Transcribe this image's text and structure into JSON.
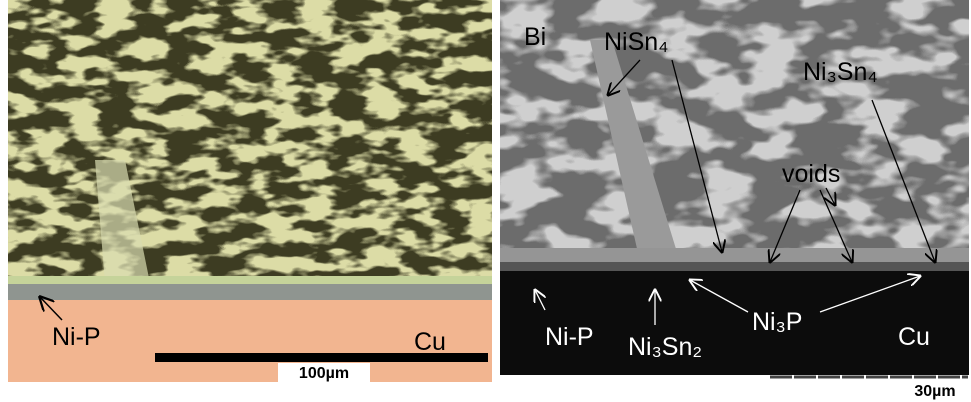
{
  "left_panel": {
    "labels": {
      "ni_p": "Ni-P",
      "cu": "Cu"
    },
    "scale_bar": "100µm"
  },
  "right_panel": {
    "labels": {
      "bi": "Bi",
      "nisn4": "NiSn₄",
      "ni3sn4": "Ni₃Sn₄",
      "voids": "voids",
      "ni_p": "Ni-P",
      "ni3sn2": "Ni₃Sn₂",
      "ni3p": "Ni₃P",
      "cu": "Cu"
    },
    "scale_bar": "30µm"
  }
}
